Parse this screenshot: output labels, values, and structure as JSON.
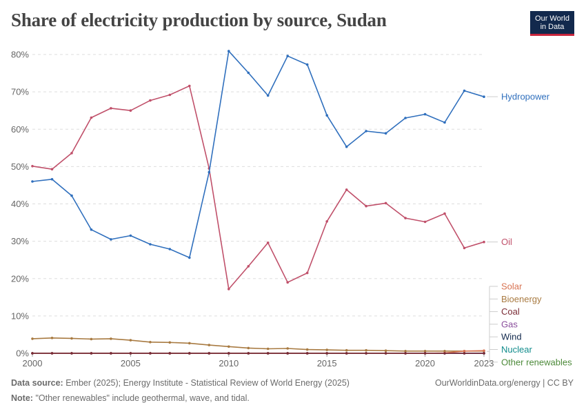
{
  "header": {
    "title": "Share of electricity production by source, Sudan",
    "logo_line1": "Our World",
    "logo_line2": "in Data"
  },
  "footer": {
    "source_label": "Data source:",
    "source_text": "Ember (2025); Energy Institute - Statistical Review of World Energy (2025)",
    "note_label": "Note:",
    "note_text": "\"Other renewables\" include geothermal, wave, and tidal.",
    "url_text": "OurWorldinData.org/energy | CC BY"
  },
  "chart_data": {
    "type": "line",
    "title": "Share of electricity production by source, Sudan",
    "xlabel": "",
    "ylabel": "",
    "xlim": [
      2000,
      2023
    ],
    "ylim": [
      0,
      80
    ],
    "y_ticks": [
      0,
      10,
      20,
      30,
      40,
      50,
      60,
      70,
      80
    ],
    "y_tick_labels": [
      "0%",
      "10%",
      "20%",
      "30%",
      "40%",
      "50%",
      "60%",
      "70%",
      "80%"
    ],
    "x_ticks": [
      2000,
      2005,
      2010,
      2015,
      2020,
      2023
    ],
    "x_tick_labels": [
      "2000",
      "2005",
      "2010",
      "2015",
      "2020",
      "2023"
    ],
    "grid": "horizontal dashed",
    "x": [
      2000,
      2001,
      2002,
      2003,
      2004,
      2005,
      2006,
      2007,
      2008,
      2009,
      2010,
      2011,
      2012,
      2013,
      2014,
      2015,
      2016,
      2017,
      2018,
      2019,
      2020,
      2021,
      2022,
      2023
    ],
    "series": [
      {
        "name": "Hydropower",
        "color": "#2f6fbd",
        "values": [
          46.0,
          46.6,
          42.2,
          33.1,
          30.5,
          31.5,
          29.2,
          27.9,
          25.6,
          48.5,
          80.9,
          75.1,
          69.0,
          79.6,
          77.3,
          63.7,
          55.3,
          59.5,
          58.9,
          63.0,
          64.0,
          61.8,
          70.3,
          68.7
        ]
      },
      {
        "name": "Oil",
        "color": "#c0506a",
        "values": [
          50.1,
          49.3,
          53.6,
          63.1,
          65.6,
          65.0,
          67.7,
          69.2,
          71.6,
          49.5,
          17.2,
          23.3,
          29.6,
          19.0,
          21.5,
          35.3,
          43.8,
          39.4,
          40.2,
          36.2,
          35.2,
          37.4,
          28.2,
          29.8
        ]
      },
      {
        "name": "Solar",
        "color": "#d87352",
        "values": [
          0,
          0,
          0,
          0,
          0,
          0,
          0,
          0,
          0,
          0,
          0,
          0,
          0,
          0,
          0,
          0,
          0,
          0,
          0,
          0,
          0,
          0.1,
          0.6,
          0.7
        ]
      },
      {
        "name": "Bioenergy",
        "color": "#a87a41",
        "values": [
          3.9,
          4.1,
          4.0,
          3.8,
          3.9,
          3.5,
          3.0,
          2.9,
          2.7,
          2.2,
          1.8,
          1.4,
          1.2,
          1.3,
          1.0,
          0.9,
          0.8,
          0.8,
          0.7,
          0.6,
          0.6,
          0.6,
          0.6,
          0.6
        ]
      },
      {
        "name": "Coal",
        "color": "#7a2b35",
        "values": [
          0,
          0,
          0,
          0,
          0,
          0,
          0,
          0,
          0,
          0,
          0,
          0,
          0,
          0,
          0,
          0,
          0,
          0,
          0,
          0,
          0,
          0,
          0,
          0
        ]
      },
      {
        "name": "Gas",
        "color": "#8a4e9c",
        "values": [
          0,
          0,
          0,
          0,
          0,
          0,
          0,
          0,
          0,
          0,
          0,
          0,
          0,
          0,
          0,
          0,
          0,
          0,
          0,
          0,
          0,
          0,
          0,
          0
        ]
      },
      {
        "name": "Wind",
        "color": "#12294d",
        "values": [
          0,
          0,
          0,
          0,
          0,
          0,
          0,
          0,
          0,
          0,
          0,
          0,
          0,
          0,
          0,
          0,
          0,
          0,
          0,
          0,
          0,
          0,
          0,
          0
        ]
      },
      {
        "name": "Nuclear",
        "color": "#118c8c",
        "values": [
          0,
          0,
          0,
          0,
          0,
          0,
          0,
          0,
          0,
          0,
          0,
          0,
          0,
          0,
          0,
          0,
          0,
          0,
          0,
          0,
          0,
          0,
          0,
          0
        ]
      },
      {
        "name": "Other renewables",
        "color": "#4d8a3a",
        "values": [
          0,
          0,
          0,
          0,
          0,
          0,
          0,
          0,
          0,
          0,
          0,
          0,
          0,
          0,
          0,
          0,
          0,
          0,
          0,
          0,
          0,
          0,
          0,
          0
        ]
      }
    ]
  }
}
